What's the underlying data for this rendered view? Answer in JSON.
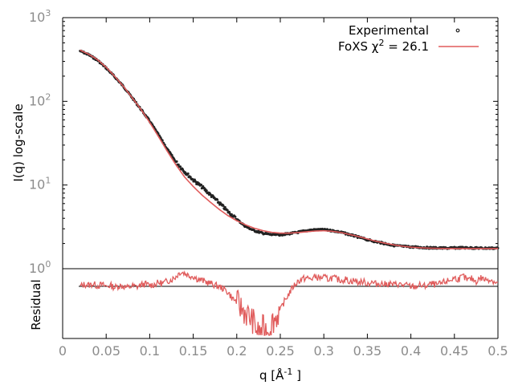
{
  "chart_data": [
    {
      "type": "scatter",
      "title": "",
      "xlabel": "q [Å⁻¹]",
      "xlabel_parts": {
        "base": "q [Å",
        "sup": "-1",
        "end": " ]"
      },
      "ylabel": "I(q) log-scale",
      "y_scale": "log",
      "xlim": [
        0,
        0.5
      ],
      "ylim": [
        1,
        1000
      ],
      "x_ticks": [
        {
          "value": 0,
          "label": "0"
        },
        {
          "value": 0.05,
          "label": "0.05"
        },
        {
          "value": 0.1,
          "label": "0.1"
        },
        {
          "value": 0.15,
          "label": "0.15"
        },
        {
          "value": 0.2,
          "label": "0.2"
        },
        {
          "value": 0.25,
          "label": "0.25"
        },
        {
          "value": 0.3,
          "label": "0.3"
        },
        {
          "value": 0.35,
          "label": "0.35"
        },
        {
          "value": 0.4,
          "label": "0.4"
        },
        {
          "value": 0.45,
          "label": "0.45"
        },
        {
          "value": 0.5,
          "label": "0.5"
        }
      ],
      "y_ticks": [
        {
          "value": 1,
          "base": "10",
          "exp": "0"
        },
        {
          "value": 10,
          "base": "10",
          "exp": "1"
        },
        {
          "value": 100,
          "base": "10",
          "exp": "2"
        },
        {
          "value": 1000,
          "base": "10",
          "exp": "3"
        }
      ],
      "grid": false,
      "legend_position": "top-right",
      "series": [
        {
          "name": "Experimental",
          "style": "points",
          "color": "#222222",
          "x": [
            0.02,
            0.03,
            0.04,
            0.05,
            0.06,
            0.07,
            0.08,
            0.09,
            0.1,
            0.11,
            0.12,
            0.13,
            0.14,
            0.15,
            0.16,
            0.17,
            0.18,
            0.19,
            0.2,
            0.21,
            0.22,
            0.23,
            0.24,
            0.25,
            0.26,
            0.27,
            0.28,
            0.29,
            0.3,
            0.31,
            0.32,
            0.33,
            0.34,
            0.35,
            0.36,
            0.37,
            0.38,
            0.39,
            0.4,
            0.41,
            0.42,
            0.43,
            0.44,
            0.45,
            0.46,
            0.47,
            0.48,
            0.49,
            0.5
          ],
          "y": [
            400,
            360,
            310,
            250,
            195,
            150,
            110,
            80,
            58,
            40,
            27,
            19,
            14.5,
            11.5,
            9.5,
            7.6,
            6.1,
            4.8,
            3.9,
            3.2,
            2.85,
            2.65,
            2.55,
            2.55,
            2.62,
            2.72,
            2.85,
            2.92,
            2.92,
            2.85,
            2.72,
            2.55,
            2.38,
            2.22,
            2.1,
            2.0,
            1.9,
            1.85,
            1.82,
            1.8,
            1.78,
            1.77,
            1.76,
            1.77,
            1.78,
            1.77,
            1.76,
            1.76,
            1.76
          ]
        },
        {
          "name": "FoXS χ² = 26.1",
          "legend_label": {
            "base": "FoXS χ",
            "sup": "2",
            "end": " = 26.1"
          },
          "style": "line",
          "color": "#e05c5c",
          "x": [
            0.02,
            0.03,
            0.04,
            0.05,
            0.06,
            0.07,
            0.08,
            0.09,
            0.1,
            0.11,
            0.12,
            0.13,
            0.14,
            0.15,
            0.16,
            0.17,
            0.18,
            0.19,
            0.2,
            0.21,
            0.22,
            0.23,
            0.24,
            0.25,
            0.26,
            0.27,
            0.28,
            0.29,
            0.3,
            0.31,
            0.32,
            0.33,
            0.34,
            0.35,
            0.36,
            0.37,
            0.38,
            0.39,
            0.4,
            0.41,
            0.42,
            0.43,
            0.44,
            0.45,
            0.46,
            0.47,
            0.48,
            0.49,
            0.5
          ],
          "y": [
            410,
            365,
            315,
            255,
            198,
            150,
            110,
            80,
            56,
            38,
            25.5,
            17.5,
            12.5,
            9.6,
            7.6,
            6.2,
            5.1,
            4.3,
            3.75,
            3.35,
            3.05,
            2.85,
            2.72,
            2.66,
            2.66,
            2.7,
            2.76,
            2.82,
            2.84,
            2.8,
            2.7,
            2.56,
            2.42,
            2.27,
            2.13,
            2.02,
            1.93,
            1.86,
            1.81,
            1.78,
            1.76,
            1.75,
            1.74,
            1.74,
            1.74,
            1.74,
            1.74,
            1.74,
            1.74
          ]
        }
      ]
    },
    {
      "type": "line",
      "title": "",
      "xlabel": "q [Å⁻¹]",
      "ylabel": "Residual",
      "reference_line": "baseline",
      "series": [
        {
          "name": "",
          "color": "#e05c5c",
          "x": [
            0.02,
            0.025,
            0.03,
            0.035,
            0.04,
            0.045,
            0.05,
            0.055,
            0.06,
            0.065,
            0.07,
            0.075,
            0.08,
            0.085,
            0.09,
            0.095,
            0.1,
            0.105,
            0.11,
            0.115,
            0.12,
            0.125,
            0.13,
            0.135,
            0.14,
            0.145,
            0.15,
            0.155,
            0.16,
            0.165,
            0.17,
            0.175,
            0.18,
            0.185,
            0.19,
            0.195,
            0.2,
            0.205,
            0.21,
            0.215,
            0.22,
            0.225,
            0.23,
            0.235,
            0.24,
            0.245,
            0.25,
            0.255,
            0.26,
            0.265,
            0.27,
            0.275,
            0.28,
            0.285,
            0.29,
            0.295,
            0.3,
            0.305,
            0.31,
            0.315,
            0.32,
            0.325,
            0.33,
            0.335,
            0.34,
            0.345,
            0.35,
            0.355,
            0.36,
            0.365,
            0.37,
            0.375,
            0.38,
            0.385,
            0.39,
            0.395,
            0.4,
            0.405,
            0.41,
            0.415,
            0.42,
            0.425,
            0.43,
            0.435,
            0.44,
            0.445,
            0.45,
            0.455,
            0.46,
            0.465,
            0.47,
            0.475,
            0.48,
            0.485,
            0.49,
            0.495,
            0.5
          ],
          "y": [
            0.0,
            0.08,
            0.05,
            0.1,
            0.02,
            0.07,
            0.0,
            0.04,
            -0.05,
            0.03,
            0.0,
            -0.06,
            0.02,
            -0.03,
            0.06,
            0.1,
            0.04,
            0.08,
            0.15,
            0.12,
            0.22,
            0.28,
            0.4,
            0.6,
            0.55,
            0.45,
            0.42,
            0.3,
            0.25,
            0.18,
            0.12,
            0.05,
            -0.02,
            -0.1,
            -0.25,
            -0.5,
            -0.65,
            -0.9,
            -1.1,
            -1.3,
            -1.5,
            -2.0,
            -1.7,
            -1.9,
            -1.5,
            -1.3,
            -1.0,
            -0.6,
            -0.3,
            0.0,
            0.2,
            0.3,
            0.35,
            0.3,
            0.4,
            0.35,
            0.38,
            0.3,
            0.36,
            0.3,
            0.25,
            0.3,
            0.2,
            0.25,
            0.15,
            0.2,
            0.12,
            0.16,
            0.1,
            0.12,
            0.08,
            0.12,
            0.06,
            0.1,
            0.05,
            0.04,
            0.0,
            -0.02,
            0.05,
            0.0,
            0.06,
            0.1,
            0.05,
            0.12,
            0.2,
            0.25,
            0.35,
            0.3,
            0.42,
            0.25,
            0.32,
            0.2,
            0.36,
            0.28,
            0.3,
            0.22,
            0.1
          ]
        }
      ]
    }
  ]
}
